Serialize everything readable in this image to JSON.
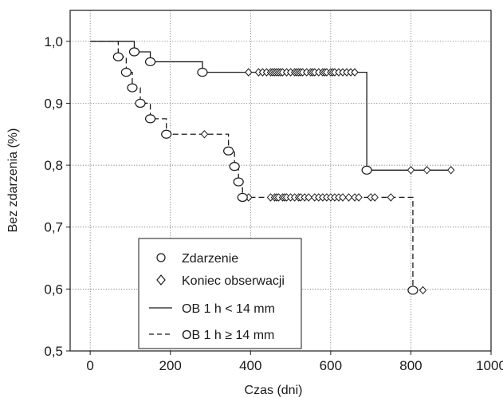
{
  "chart_data": {
    "type": "line",
    "xlabel": "Czas (dni)",
    "ylabel": "Bez zdarzenia (%)",
    "xlim": [
      -50,
      1000
    ],
    "ylim": [
      0.5,
      1.05
    ],
    "x_ticks": [
      0,
      200,
      400,
      600,
      800,
      1000
    ],
    "x_tick_labels": [
      "0",
      "200",
      "400",
      "600",
      "800",
      "1000"
    ],
    "y_ticks": [
      0.5,
      0.6,
      0.7,
      0.8,
      0.9,
      1.0
    ],
    "y_tick_labels": [
      "0,5",
      "0,6",
      "0,7",
      "0,8",
      "0,9",
      "1,0"
    ],
    "grid": true,
    "legend_position": "bottom-left",
    "legend": {
      "marker_event": "Zdarzenie",
      "marker_censored": "Koniec obserwacji",
      "line_solid": "OB 1 h < 14 mm",
      "line_dashed": "OB 1 h ≥ 14 mm"
    },
    "series": [
      {
        "name": "OB 1 h < 14 mm",
        "style": "solid",
        "color": "#1a1a1a",
        "steps": [
          [
            0,
            1.0
          ],
          [
            110,
            0.983
          ],
          [
            150,
            0.967
          ],
          [
            280,
            0.95
          ],
          [
            690,
            0.792
          ],
          [
            900,
            0.792
          ]
        ],
        "events": [
          [
            110,
            0.983
          ],
          [
            150,
            0.967
          ],
          [
            280,
            0.95
          ],
          [
            690,
            0.792
          ]
        ],
        "censored": [
          395,
          420,
          430,
          440,
          450,
          455,
          460,
          465,
          470,
          475,
          480,
          490,
          500,
          510,
          515,
          520,
          525,
          530,
          540,
          550,
          555,
          560,
          570,
          580,
          585,
          590,
          600,
          605,
          610,
          620,
          630,
          640,
          650,
          660,
          695,
          800,
          840,
          900
        ]
      },
      {
        "name": "OB 1 h ≥ 14 mm",
        "style": "dashed",
        "color": "#1a1a1a",
        "steps": [
          [
            0,
            1.0
          ],
          [
            70,
            0.975
          ],
          [
            90,
            0.95
          ],
          [
            105,
            0.925
          ],
          [
            125,
            0.9
          ],
          [
            150,
            0.875
          ],
          [
            190,
            0.85
          ],
          [
            345,
            0.823
          ],
          [
            360,
            0.798
          ],
          [
            370,
            0.773
          ],
          [
            380,
            0.748
          ],
          [
            805,
            0.598
          ],
          [
            830,
            0.598
          ]
        ],
        "events": [
          [
            70,
            0.975
          ],
          [
            90,
            0.95
          ],
          [
            105,
            0.925
          ],
          [
            125,
            0.9
          ],
          [
            150,
            0.875
          ],
          [
            190,
            0.85
          ],
          [
            345,
            0.823
          ],
          [
            360,
            0.798
          ],
          [
            370,
            0.773
          ],
          [
            380,
            0.748
          ],
          [
            805,
            0.598
          ]
        ],
        "censored": [
          285,
          395,
          450,
          460,
          465,
          470,
          480,
          485,
          490,
          500,
          510,
          520,
          525,
          535,
          545,
          560,
          570,
          580,
          590,
          600,
          610,
          620,
          630,
          645,
          660,
          670,
          700,
          710,
          750,
          830
        ]
      }
    ]
  }
}
